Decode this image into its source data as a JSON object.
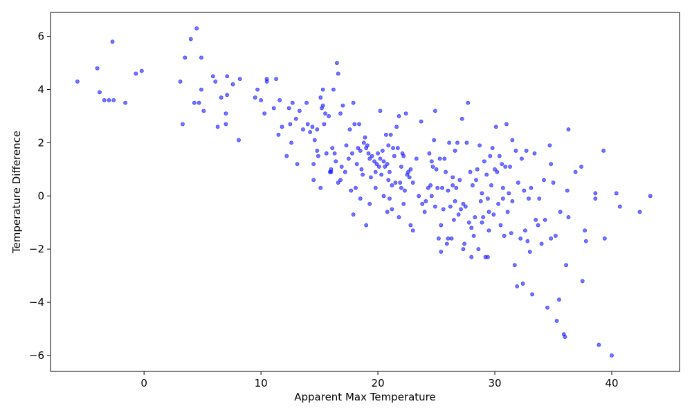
{
  "chart_data": {
    "type": "scatter",
    "title": "",
    "xlabel": "Apparent Max Temperature",
    "ylabel": "Temperature Difference",
    "xlim": [
      -8.0,
      45.8
    ],
    "ylim": [
      -6.6,
      6.9
    ],
    "x_ticks": [
      0,
      10,
      20,
      30,
      40
    ],
    "x_tick_labels": [
      "0",
      "10",
      "20",
      "30",
      "40"
    ],
    "y_ticks": [
      -6,
      -4,
      -2,
      0,
      2,
      4,
      6
    ],
    "y_tick_labels": [
      "−6",
      "−4",
      "−2",
      "0",
      "2",
      "4",
      "6"
    ],
    "grid": false,
    "legend": "none",
    "marker_color": "#0000ff",
    "marker_opacity": 0.55,
    "series": [
      {
        "points": [
          [
            -5.7,
            4.3
          ],
          [
            -4.0,
            4.8
          ],
          [
            -3.8,
            3.9
          ],
          [
            -3.4,
            3.6
          ],
          [
            -3.0,
            3.6
          ],
          [
            -2.7,
            5.8
          ],
          [
            -2.6,
            3.6
          ],
          [
            -1.6,
            3.5
          ],
          [
            -0.7,
            4.6
          ],
          [
            -0.2,
            4.7
          ],
          [
            3.1,
            4.3
          ],
          [
            3.3,
            2.7
          ],
          [
            3.5,
            5.2
          ],
          [
            4.0,
            5.9
          ],
          [
            4.3,
            3.5
          ],
          [
            4.5,
            6.3
          ],
          [
            4.7,
            3.5
          ],
          [
            4.9,
            5.2
          ],
          [
            4.9,
            4.0
          ],
          [
            5.1,
            3.2
          ],
          [
            5.9,
            4.5
          ],
          [
            6.1,
            4.3
          ],
          [
            6.3,
            2.6
          ],
          [
            6.6,
            3.7
          ],
          [
            7.0,
            2.7
          ],
          [
            7.0,
            3.1
          ],
          [
            7.1,
            3.8
          ],
          [
            7.1,
            4.5
          ],
          [
            7.6,
            4.2
          ],
          [
            8.1,
            2.1
          ],
          [
            8.2,
            4.4
          ],
          [
            9.5,
            3.7
          ],
          [
            9.7,
            4.0
          ],
          [
            10.0,
            3.6
          ],
          [
            10.3,
            3.1
          ],
          [
            10.5,
            4.4
          ],
          [
            10.5,
            4.3
          ],
          [
            11.1,
            3.3
          ],
          [
            11.3,
            4.4
          ],
          [
            11.5,
            2.3
          ],
          [
            11.6,
            3.6
          ],
          [
            11.8,
            2.6
          ],
          [
            12.2,
            1.5
          ],
          [
            12.4,
            3.3
          ],
          [
            12.5,
            2.7
          ],
          [
            12.7,
            3.5
          ],
          [
            12.6,
            2.0
          ],
          [
            13.0,
            2.9
          ],
          [
            13.1,
            1.2
          ],
          [
            13.3,
            3.2
          ],
          [
            13.6,
            2.5
          ],
          [
            13.9,
            3.5
          ],
          [
            14.0,
            2.7
          ],
          [
            14.2,
            2.4
          ],
          [
            14.4,
            2.6
          ],
          [
            14.5,
            1.2
          ],
          [
            14.6,
            2.1
          ],
          [
            14.8,
            1.7
          ],
          [
            14.9,
            1.5
          ],
          [
            15.1,
            3.7
          ],
          [
            15.2,
            3.3
          ],
          [
            15.3,
            4.0
          ],
          [
            15.3,
            3.4
          ],
          [
            15.5,
            3.1
          ],
          [
            15.4,
            2.7
          ],
          [
            14.5,
            0.6
          ],
          [
            15.1,
            0.3
          ],
          [
            15.6,
            1.6
          ],
          [
            15.9,
            0.9
          ],
          [
            16.0,
            0.9
          ],
          [
            16.1,
            1.8
          ],
          [
            16.2,
            4.0
          ],
          [
            16.3,
            1.6
          ],
          [
            16.4,
            1.3
          ],
          [
            16.6,
            0.5
          ],
          [
            16.8,
            0.6
          ],
          [
            16.9,
            1.1
          ],
          [
            16.5,
            5.0
          ],
          [
            16.6,
            4.6
          ],
          [
            16.8,
            3.1
          ],
          [
            17.0,
            3.4
          ],
          [
            17.3,
            1.9
          ],
          [
            17.5,
            1.4
          ],
          [
            17.6,
            2.5
          ],
          [
            17.7,
            0.2
          ],
          [
            17.8,
            1.6
          ],
          [
            17.9,
            3.5
          ],
          [
            18.0,
            2.7
          ],
          [
            18.1,
            0.3
          ],
          [
            18.2,
            1.2
          ],
          [
            18.3,
            1.8
          ],
          [
            18.5,
            1.7
          ],
          [
            18.6,
            1.0
          ],
          [
            18.7,
            0.8
          ],
          [
            18.8,
            2.0
          ],
          [
            18.9,
            2.2
          ],
          [
            19.0,
            1.8
          ],
          [
            19.1,
            1.9
          ],
          [
            19.2,
            1.6
          ],
          [
            19.3,
            1.4
          ],
          [
            19.4,
            0.7
          ],
          [
            19.5,
            1.5
          ],
          [
            19.7,
            1.3
          ],
          [
            19.8,
            0.9
          ],
          [
            19.9,
            1.2
          ],
          [
            20.0,
            1.6
          ],
          [
            20.1,
            1.1
          ],
          [
            20.2,
            1.4
          ],
          [
            20.3,
            0.8
          ],
          [
            20.4,
            1.7
          ],
          [
            20.5,
            1.3
          ],
          [
            20.6,
            1.1
          ],
          [
            20.7,
            2.3
          ],
          [
            20.8,
            1.2
          ],
          [
            20.9,
            0.6
          ],
          [
            21.0,
            0.9
          ],
          [
            21.1,
            2.3
          ],
          [
            21.2,
            0.4
          ],
          [
            21.3,
            1.8
          ],
          [
            21.4,
            1.5
          ],
          [
            21.5,
            0.5
          ],
          [
            21.6,
            2.6
          ],
          [
            21.7,
            1.8
          ],
          [
            21.8,
            3.0
          ],
          [
            21.9,
            0.5
          ],
          [
            22.0,
            0.3
          ],
          [
            22.1,
            1.6
          ],
          [
            22.2,
            1.5
          ],
          [
            22.3,
            0.2
          ],
          [
            22.4,
            3.1
          ],
          [
            22.5,
            0.8
          ],
          [
            22.6,
            0.9
          ],
          [
            22.7,
            0.7
          ],
          [
            22.8,
            1.0
          ],
          [
            20.2,
            3.2
          ],
          [
            20.8,
            -0.6
          ],
          [
            21.0,
            -0.1
          ],
          [
            21.8,
            -0.8
          ],
          [
            19.0,
            -1.1
          ],
          [
            19.3,
            -0.3
          ],
          [
            17.9,
            -0.7
          ],
          [
            18.5,
            -0.1
          ],
          [
            22.2,
            -0.3
          ],
          [
            22.8,
            -1.1
          ],
          [
            23.0,
            -1.3
          ],
          [
            23.3,
            1.4
          ],
          [
            23.7,
            2.8
          ],
          [
            23.8,
            -0.3
          ],
          [
            24.1,
            -0.2
          ],
          [
            24.3,
            0.3
          ],
          [
            24.4,
            1.6
          ],
          [
            24.5,
            0.4
          ],
          [
            24.6,
            1.3
          ],
          [
            24.7,
            1.1
          ],
          [
            24.8,
            2.1
          ],
          [
            24.9,
            3.2
          ],
          [
            25.0,
            1.0
          ],
          [
            25.1,
            0.3
          ],
          [
            25.2,
            -1.6
          ],
          [
            25.3,
            1.4
          ],
          [
            25.4,
            -2.1
          ],
          [
            25.5,
            0.3
          ],
          [
            25.6,
            -0.5
          ],
          [
            25.7,
            1.4
          ],
          [
            25.8,
            0.9
          ],
          [
            25.9,
            -1.8
          ],
          [
            26.0,
            0.2
          ],
          [
            26.1,
            2.0
          ],
          [
            26.2,
            -0.4
          ],
          [
            26.3,
            -1.6
          ],
          [
            26.4,
            0.7
          ],
          [
            26.5,
            -0.9
          ],
          [
            26.6,
            1.7
          ],
          [
            26.7,
            0.3
          ],
          [
            26.8,
            2.0
          ],
          [
            26.9,
            -0.7
          ],
          [
            27.0,
            0.6
          ],
          [
            27.1,
            -0.5
          ],
          [
            27.2,
            2.9
          ],
          [
            27.3,
            -2.0
          ],
          [
            27.4,
            -1.8
          ],
          [
            27.5,
            -0.4
          ],
          [
            27.6,
            2.0
          ],
          [
            27.7,
            3.5
          ],
          [
            27.8,
            -1.0
          ],
          [
            27.9,
            0.9
          ],
          [
            28.0,
            -2.3
          ],
          [
            28.1,
            0.4
          ],
          [
            28.2,
            -1.5
          ],
          [
            28.3,
            -0.8
          ],
          [
            28.4,
            0.6
          ],
          [
            28.5,
            1.0
          ],
          [
            28.6,
            -2.0
          ],
          [
            28.7,
            1.9
          ],
          [
            28.8,
            -0.2
          ],
          [
            28.9,
            0.1
          ],
          [
            29.0,
            -0.8
          ],
          [
            29.1,
            1.3
          ],
          [
            29.2,
            -2.3
          ],
          [
            29.3,
            0.8
          ],
          [
            29.4,
            -0.1
          ],
          [
            29.5,
            -1.3
          ],
          [
            29.6,
            1.5
          ],
          [
            29.7,
            0.4
          ],
          [
            29.8,
            1.8
          ],
          [
            29.9,
            -0.7
          ],
          [
            30.0,
            1.0
          ],
          [
            30.1,
            2.6
          ],
          [
            30.2,
            0.9
          ],
          [
            30.3,
            -0.3
          ],
          [
            30.4,
            1.5
          ],
          [
            30.5,
            -1.1
          ],
          [
            30.6,
            1.2
          ],
          [
            30.7,
            0.3
          ],
          [
            30.8,
            -1.5
          ],
          [
            30.9,
            1.1
          ],
          [
            31.0,
            2.7
          ],
          [
            31.1,
            -0.6
          ],
          [
            31.2,
            0.1
          ],
          [
            31.3,
            1.1
          ],
          [
            31.4,
            -1.4
          ],
          [
            31.5,
            2.1
          ],
          [
            31.7,
            -2.6
          ],
          [
            31.8,
            1.7
          ],
          [
            31.9,
            -3.4
          ],
          [
            32.0,
            0.5
          ],
          [
            32.2,
            -1.6
          ],
          [
            32.3,
            1.4
          ],
          [
            32.4,
            -3.3
          ],
          [
            32.5,
            0.2
          ],
          [
            32.6,
            -1.3
          ],
          [
            32.7,
            1.7
          ],
          [
            32.8,
            -1.7
          ],
          [
            32.9,
            -0.1
          ],
          [
            33.0,
            -2.1
          ],
          [
            33.1,
            0.3
          ],
          [
            33.2,
            -3.7
          ],
          [
            33.4,
            1.6
          ],
          [
            33.5,
            -0.9
          ],
          [
            33.8,
            -0.1
          ],
          [
            34.0,
            -1.8
          ],
          [
            34.2,
            0.6
          ],
          [
            34.5,
            -4.2
          ],
          [
            34.7,
            1.9
          ],
          [
            34.8,
            1.2
          ],
          [
            35.0,
            0.5
          ],
          [
            35.2,
            -1.5
          ],
          [
            35.3,
            -4.7
          ],
          [
            35.5,
            -3.9
          ],
          [
            35.9,
            -5.2
          ],
          [
            36.0,
            -5.3
          ],
          [
            36.1,
            -2.6
          ],
          [
            36.2,
            0.2
          ],
          [
            36.3,
            2.5
          ],
          [
            36.3,
            -0.8
          ],
          [
            36.9,
            0.9
          ],
          [
            37.4,
            1.1
          ],
          [
            37.5,
            -3.2
          ],
          [
            37.7,
            -1.3
          ],
          [
            37.8,
            -1.7
          ],
          [
            38.6,
            0.1
          ],
          [
            38.6,
            -0.1
          ],
          [
            38.9,
            -5.6
          ],
          [
            39.3,
            1.7
          ],
          [
            39.4,
            -1.6
          ],
          [
            40.0,
            -6.0
          ],
          [
            40.4,
            0.1
          ],
          [
            40.7,
            -0.4
          ],
          [
            42.4,
            -0.6
          ],
          [
            43.3,
            0.0
          ],
          [
            23.5,
            0.0
          ],
          [
            24.0,
            -0.6
          ],
          [
            24.9,
            -0.4
          ],
          [
            25.4,
            -1.1
          ],
          [
            26.0,
            -1.6
          ],
          [
            26.6,
            -0.2
          ],
          [
            27.3,
            -0.3
          ],
          [
            28.0,
            -1.2
          ],
          [
            28.9,
            -1.0
          ],
          [
            29.4,
            -2.3
          ],
          [
            30.7,
            -0.1
          ],
          [
            31.5,
            -0.2
          ],
          [
            33.7,
            -1.1
          ],
          [
            34.3,
            -0.9
          ],
          [
            34.8,
            -1.6
          ],
          [
            35.6,
            -0.6
          ],
          [
            22.0,
            1.1
          ],
          [
            21.2,
            -0.5
          ],
          [
            20.5,
            0.0
          ],
          [
            19.8,
            0.3
          ],
          [
            17.2,
            0.9
          ],
          [
            16.0,
            1.0
          ],
          [
            15.8,
            3.0
          ],
          [
            14.8,
            2.5
          ],
          [
            18.4,
            2.7
          ],
          [
            20.9,
            1.9
          ],
          [
            23.0,
            0.5
          ],
          [
            24.6,
            0.0
          ],
          [
            26.4,
            0.4
          ],
          [
            29.5,
            -0.6
          ]
        ]
      }
    ]
  }
}
